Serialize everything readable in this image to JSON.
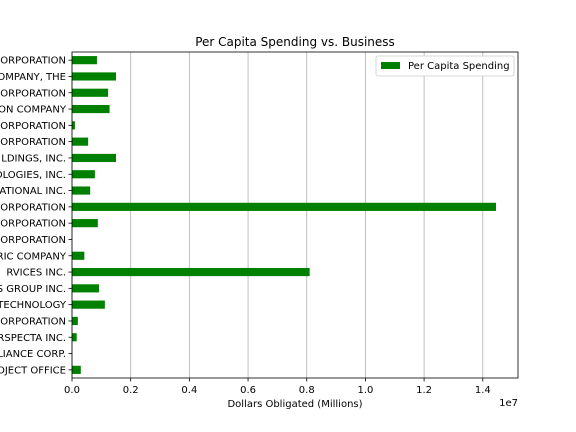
{
  "chart_data": {
    "type": "bar",
    "orientation": "horizontal",
    "title": "Per Capita Spending vs. Business",
    "xlabel": "Dollars Obligated (Millions)",
    "ylabel": "",
    "x_offset_label": "1e7",
    "xlim": [
      0,
      15200000
    ],
    "x_ticks": [
      0,
      2000000,
      4000000,
      6000000,
      8000000,
      10000000,
      12000000,
      14000000
    ],
    "x_tick_labels": [
      "0.0",
      "0.2",
      "0.4",
      "0.6",
      "0.8",
      "1.0",
      "1.2",
      "1.4"
    ],
    "grid": "vertical",
    "legend_position": "top-right",
    "bar_color": "#008000",
    "categories": [
      "ORPORATION",
      "OMPANY, THE",
      "ORPORATION",
      "ON COMPANY",
      "ORPORATION",
      "ORPORATION",
      "LDINGS, INC.",
      "OLOGIES, INC.",
      "ATIONAL INC.",
      "ORPORATION",
      "ORPORATION",
      "ORPORATION",
      "RIC COMPANY",
      "RVICES INC.",
      "S GROUP INC.",
      "TECHNOLOGY",
      "ORPORATION",
      "RSPECTA INC.",
      "LIANCE CORP.",
      "OJECT OFFICE"
    ],
    "series": [
      {
        "name": "Per Capita Spending",
        "values": [
          850000,
          1500000,
          1230000,
          1280000,
          100000,
          550000,
          1500000,
          780000,
          620000,
          14450000,
          880000,
          0,
          420000,
          8100000,
          920000,
          1120000,
          200000,
          160000,
          0,
          300000
        ]
      }
    ]
  }
}
